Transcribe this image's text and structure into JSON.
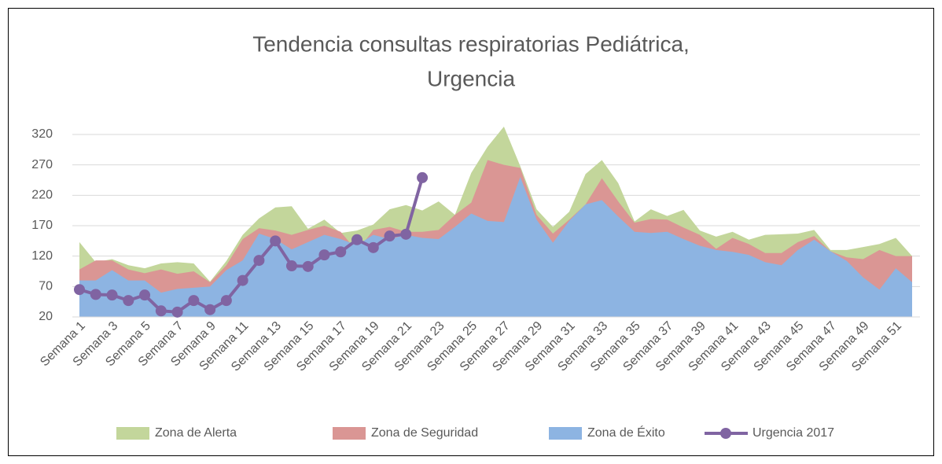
{
  "chart_data": {
    "type": "area-line",
    "title": [
      "Tendencia consultas respiratorias Pediátrica,",
      "Urgencia"
    ],
    "categories": [
      "Semana 1",
      null,
      "Semana 3",
      null,
      "Semana 5",
      null,
      "Semana 7",
      null,
      "Semana 9",
      null,
      "Semana 11",
      null,
      "Semana 13",
      null,
      "Semana 15",
      null,
      "Semana 17",
      null,
      "Semana 19",
      null,
      "Semana 21",
      null,
      "Semana 23",
      null,
      "Semana 25",
      null,
      "Semana 27",
      null,
      "Semana 29",
      null,
      "Semana 31",
      null,
      "Semana 33",
      null,
      "Semana 35",
      null,
      "Semana 37",
      null,
      "Semana 39",
      null,
      "Semana 41",
      null,
      "Semana 43",
      null,
      "Semana 45",
      null,
      "Semana 47",
      null,
      "Semana 49",
      null,
      "Semana 51",
      null
    ],
    "ylim": [
      20,
      320
    ],
    "yticks": [
      20,
      70,
      120,
      170,
      220,
      270,
      320
    ],
    "grid": true,
    "series": [
      {
        "name": "Zona de Alerta",
        "color": "#c3d69b",
        "kind": "area",
        "values": [
          143,
          110,
          115,
          105,
          100,
          108,
          110,
          108,
          78,
          112,
          155,
          182,
          200,
          202,
          165,
          180,
          158,
          162,
          172,
          197,
          204,
          195,
          210,
          188,
          257,
          300,
          333,
          268,
          197,
          168,
          193,
          255,
          278,
          240,
          177,
          197,
          186,
          196,
          162,
          152,
          160,
          147,
          155,
          156,
          157,
          163,
          130,
          130,
          135,
          140,
          150,
          120
        ]
      },
      {
        "name": "Zona de Seguridad",
        "color": "#da9694",
        "kind": "area",
        "values": [
          98,
          113,
          113,
          98,
          92,
          98,
          91,
          95,
          77,
          105,
          148,
          166,
          162,
          155,
          163,
          170,
          160,
          128,
          163,
          168,
          160,
          160,
          163,
          188,
          208,
          278,
          270,
          265,
          188,
          157,
          180,
          205,
          248,
          210,
          175,
          181,
          180,
          167,
          155,
          132,
          150,
          140,
          125,
          125,
          143,
          153,
          128,
          118,
          115,
          130,
          120,
          120
        ]
      },
      {
        "name": "Zona de Éxito",
        "color": "#8db4e2",
        "kind": "area",
        "values": [
          80,
          80,
          97,
          80,
          80,
          60,
          66,
          68,
          70,
          97,
          113,
          157,
          148,
          131,
          143,
          155,
          148,
          138,
          155,
          148,
          155,
          150,
          148,
          168,
          190,
          178,
          176,
          250,
          180,
          142,
          178,
          205,
          212,
          185,
          160,
          158,
          160,
          148,
          137,
          130,
          127,
          122,
          110,
          105,
          130,
          147,
          128,
          112,
          85,
          65,
          100,
          77
        ]
      },
      {
        "name": "Urgencia 2017",
        "color": "#8064a2",
        "kind": "line",
        "values": [
          65,
          57,
          56,
          47,
          56,
          30,
          28,
          47,
          32,
          47,
          80,
          113,
          145,
          104,
          103,
          122,
          127,
          147,
          134,
          153,
          156,
          249,
          null,
          null,
          null,
          null,
          null,
          null,
          null,
          null,
          null,
          null,
          null,
          null,
          null,
          null,
          null,
          null,
          null,
          null,
          null,
          null,
          null,
          null,
          null,
          null,
          null,
          null,
          null,
          null,
          null,
          null
        ]
      }
    ]
  }
}
